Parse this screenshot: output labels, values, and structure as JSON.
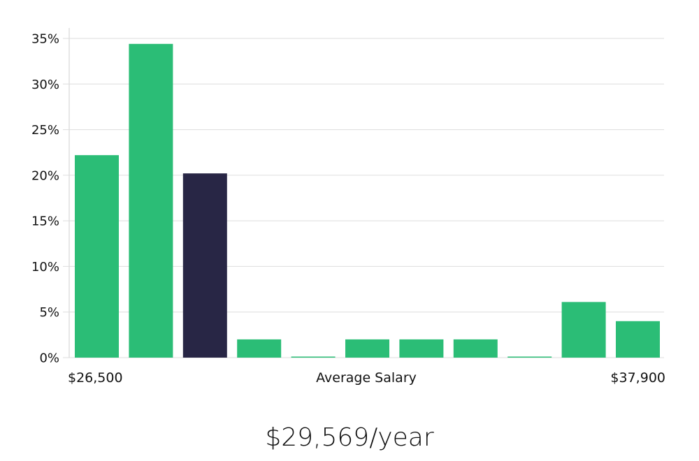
{
  "chart_data": {
    "type": "bar",
    "categories": [
      "1",
      "2",
      "3",
      "4",
      "5",
      "6",
      "7",
      "8",
      "9",
      "10",
      "11"
    ],
    "values": [
      22.2,
      34.4,
      20.2,
      2.0,
      0.1,
      2.0,
      2.0,
      2.0,
      0.1,
      6.1,
      4.0
    ],
    "highlight_index": 2,
    "ylim": [
      0,
      35
    ],
    "yticks": [
      0,
      5,
      10,
      15,
      20,
      25,
      30,
      35
    ],
    "ytick_suffix": "%",
    "xlabel_left": "$26,500",
    "xlabel_center": "Average Salary",
    "xlabel_right": "$37,900",
    "grid": true,
    "colors": {
      "bar": "#2bbd76",
      "highlight": "#282645",
      "grid": "#dddddd",
      "axis": "#cfcfcf"
    }
  },
  "summary": {
    "value": "$29,569/year"
  }
}
